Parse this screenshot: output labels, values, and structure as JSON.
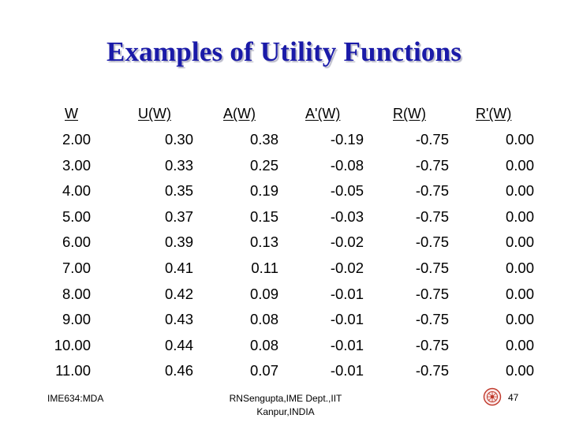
{
  "slide": {
    "title": "Examples of Utility Functions"
  },
  "table": {
    "headers": [
      "W",
      "U(W)",
      "A(W)",
      "A'(W)",
      "R(W)",
      "R'(W)"
    ],
    "rows": [
      [
        "2.00",
        "0.30",
        "0.38",
        "-0.19",
        "-0.75",
        "0.00"
      ],
      [
        "3.00",
        "0.33",
        "0.25",
        "-0.08",
        "-0.75",
        "0.00"
      ],
      [
        "4.00",
        "0.35",
        "0.19",
        "-0.05",
        "-0.75",
        "0.00"
      ],
      [
        "5.00",
        "0.37",
        "0.15",
        "-0.03",
        "-0.75",
        "0.00"
      ],
      [
        "6.00",
        "0.39",
        "0.13",
        "-0.02",
        "-0.75",
        "0.00"
      ],
      [
        "7.00",
        "0.41",
        "0.11",
        "-0.02",
        "-0.75",
        "0.00"
      ],
      [
        "8.00",
        "0.42",
        "0.09",
        "-0.01",
        "-0.75",
        "0.00"
      ],
      [
        "9.00",
        "0.43",
        "0.08",
        "-0.01",
        "-0.75",
        "0.00"
      ],
      [
        "10.00",
        "0.44",
        "0.08",
        "-0.01",
        "-0.75",
        "0.00"
      ],
      [
        "11.00",
        "0.46",
        "0.07",
        "-0.01",
        "-0.75",
        "0.00"
      ]
    ]
  },
  "footer": {
    "course": "IME634:MDA",
    "author_line1": "RNSengupta,IME Dept.,IIT",
    "author_line2": "Kanpur,INDIA",
    "page_number": "47",
    "logo_icon": "institute-seal-icon",
    "logo_color": "#c0392b"
  },
  "colors": {
    "title": "#1a1aa8",
    "text": "#000000",
    "background": "#ffffff"
  }
}
